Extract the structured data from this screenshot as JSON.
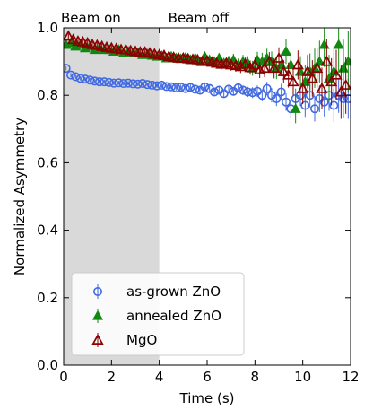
{
  "chart_data": {
    "type": "scatter",
    "title": "",
    "xlabel": "Time (s)",
    "ylabel": "Normalized Asymmetry",
    "xlim": [
      0,
      12
    ],
    "ylim": [
      0.0,
      1.0
    ],
    "xticks": [
      0,
      2,
      4,
      6,
      8,
      10,
      12
    ],
    "yticks": [
      0.0,
      0.2,
      0.4,
      0.6,
      0.8,
      1.0
    ],
    "xtick_labels": [
      "0",
      "2",
      "4",
      "6",
      "8",
      "10",
      "12"
    ],
    "ytick_labels": [
      "0.0",
      "0.2",
      "0.4",
      "0.6",
      "0.8",
      "1.0"
    ],
    "grid": false,
    "legend_position": "lower-left",
    "shaded_region": {
      "x": [
        0,
        4
      ],
      "color": "#d9d9d9"
    },
    "annotations": [
      {
        "text": "Beam on",
        "x": 0
      },
      {
        "text": "Beam off",
        "x": 4.3
      }
    ],
    "series": [
      {
        "name": "as-grown ZnO",
        "marker": "circle-open",
        "color": "#4169e1",
        "x": [
          0.1,
          0.3,
          0.5,
          0.7,
          0.9,
          1.1,
          1.3,
          1.5,
          1.7,
          1.9,
          2.1,
          2.3,
          2.5,
          2.7,
          2.9,
          3.1,
          3.3,
          3.5,
          3.7,
          3.9,
          4.1,
          4.3,
          4.5,
          4.7,
          4.9,
          5.1,
          5.3,
          5.5,
          5.7,
          5.9,
          6.1,
          6.3,
          6.5,
          6.7,
          6.9,
          7.1,
          7.3,
          7.5,
          7.7,
          7.9,
          8.1,
          8.3,
          8.5,
          8.7,
          8.9,
          9.1,
          9.3,
          9.5,
          9.7,
          9.9,
          10.1,
          10.3,
          10.5,
          10.7,
          10.9,
          11.1,
          11.3,
          11.5,
          11.7,
          11.9
        ],
        "y": [
          0.88,
          0.86,
          0.855,
          0.85,
          0.848,
          0.845,
          0.842,
          0.84,
          0.84,
          0.838,
          0.836,
          0.837,
          0.835,
          0.836,
          0.834,
          0.833,
          0.835,
          0.832,
          0.83,
          0.828,
          0.83,
          0.826,
          0.825,
          0.822,
          0.824,
          0.82,
          0.823,
          0.818,
          0.815,
          0.825,
          0.82,
          0.81,
          0.815,
          0.805,
          0.818,
          0.812,
          0.822,
          0.815,
          0.81,
          0.808,
          0.812,
          0.8,
          0.82,
          0.8,
          0.79,
          0.81,
          0.78,
          0.76,
          0.79,
          0.8,
          0.77,
          0.8,
          0.76,
          0.79,
          0.78,
          0.8,
          0.77,
          0.8,
          0.79,
          0.79
        ],
        "yerr": [
          0.006,
          0.006,
          0.006,
          0.006,
          0.006,
          0.006,
          0.006,
          0.006,
          0.006,
          0.006,
          0.006,
          0.006,
          0.006,
          0.006,
          0.006,
          0.006,
          0.006,
          0.006,
          0.006,
          0.006,
          0.008,
          0.008,
          0.008,
          0.008,
          0.008,
          0.008,
          0.009,
          0.009,
          0.009,
          0.01,
          0.01,
          0.01,
          0.011,
          0.011,
          0.012,
          0.012,
          0.013,
          0.014,
          0.015,
          0.016,
          0.017,
          0.018,
          0.02,
          0.021,
          0.022,
          0.024,
          0.026,
          0.028,
          0.03,
          0.032,
          0.034,
          0.036,
          0.038,
          0.04,
          0.043,
          0.046,
          0.049,
          0.052,
          0.056,
          0.06
        ]
      },
      {
        "name": "annealed ZnO",
        "marker": "triangle-filled",
        "color": "#118811",
        "x": [
          0.1,
          0.3,
          0.5,
          0.7,
          0.9,
          1.1,
          1.3,
          1.5,
          1.7,
          1.9,
          2.1,
          2.3,
          2.5,
          2.7,
          2.9,
          3.1,
          3.3,
          3.5,
          3.7,
          3.9,
          4.1,
          4.3,
          4.5,
          4.7,
          4.9,
          5.1,
          5.3,
          5.5,
          5.7,
          5.9,
          6.1,
          6.3,
          6.5,
          6.7,
          6.9,
          7.1,
          7.3,
          7.5,
          7.7,
          7.9,
          8.1,
          8.3,
          8.5,
          8.7,
          8.9,
          9.1,
          9.3,
          9.5,
          9.7,
          9.9,
          10.1,
          10.3,
          10.5,
          10.7,
          10.9,
          11.1,
          11.3,
          11.5,
          11.7,
          11.9
        ],
        "y": [
          0.95,
          0.955,
          0.945,
          0.95,
          0.94,
          0.945,
          0.935,
          0.94,
          0.935,
          0.935,
          0.93,
          0.935,
          0.925,
          0.93,
          0.925,
          0.925,
          0.92,
          0.922,
          0.918,
          0.915,
          0.917,
          0.91,
          0.915,
          0.91,
          0.908,
          0.912,
          0.905,
          0.91,
          0.9,
          0.915,
          0.905,
          0.9,
          0.91,
          0.895,
          0.9,
          0.905,
          0.89,
          0.9,
          0.895,
          0.88,
          0.905,
          0.9,
          0.91,
          0.9,
          0.88,
          0.89,
          0.93,
          0.89,
          0.76,
          0.87,
          0.84,
          0.87,
          0.88,
          0.9,
          0.95,
          0.85,
          0.87,
          0.95,
          0.88,
          0.9
        ],
        "yerr": [
          0.008,
          0.008,
          0.008,
          0.008,
          0.008,
          0.008,
          0.008,
          0.008,
          0.008,
          0.008,
          0.008,
          0.008,
          0.008,
          0.008,
          0.008,
          0.008,
          0.008,
          0.008,
          0.008,
          0.008,
          0.009,
          0.009,
          0.01,
          0.01,
          0.01,
          0.011,
          0.011,
          0.012,
          0.012,
          0.013,
          0.013,
          0.014,
          0.015,
          0.016,
          0.017,
          0.018,
          0.019,
          0.02,
          0.021,
          0.022,
          0.024,
          0.026,
          0.028,
          0.03,
          0.032,
          0.034,
          0.037,
          0.04,
          0.043,
          0.046,
          0.05,
          0.054,
          0.058,
          0.062,
          0.066,
          0.07,
          0.075,
          0.08,
          0.085,
          0.09
        ]
      },
      {
        "name": "MgO",
        "marker": "triangle-open",
        "color": "#8b0000",
        "x": [
          0.2,
          0.4,
          0.6,
          0.8,
          1.0,
          1.2,
          1.4,
          1.6,
          1.8,
          2.0,
          2.2,
          2.4,
          2.6,
          2.8,
          3.0,
          3.2,
          3.4,
          3.6,
          3.8,
          4.0,
          4.2,
          4.4,
          4.6,
          4.8,
          5.0,
          5.2,
          5.4,
          5.6,
          5.8,
          6.0,
          6.2,
          6.4,
          6.6,
          6.8,
          7.0,
          7.2,
          7.4,
          7.6,
          7.8,
          8.0,
          8.2,
          8.4,
          8.6,
          8.8,
          9.0,
          9.2,
          9.4,
          9.6,
          9.8,
          10.0,
          10.2,
          10.4,
          10.6,
          10.8,
          11.0,
          11.2,
          11.4,
          11.6,
          11.8
        ],
        "y": [
          0.975,
          0.965,
          0.96,
          0.958,
          0.955,
          0.95,
          0.948,
          0.945,
          0.942,
          0.94,
          0.938,
          0.935,
          0.935,
          0.932,
          0.93,
          0.928,
          0.928,
          0.925,
          0.922,
          0.92,
          0.918,
          0.915,
          0.912,
          0.91,
          0.91,
          0.908,
          0.906,
          0.905,
          0.9,
          0.902,
          0.898,
          0.895,
          0.892,
          0.895,
          0.89,
          0.888,
          0.885,
          0.892,
          0.882,
          0.89,
          0.875,
          0.88,
          0.9,
          0.88,
          0.91,
          0.87,
          0.86,
          0.84,
          0.89,
          0.82,
          0.87,
          0.85,
          0.88,
          0.82,
          0.9,
          0.84,
          0.86,
          0.81,
          0.83
        ],
        "yerr": [
          0.008,
          0.008,
          0.008,
          0.008,
          0.008,
          0.008,
          0.008,
          0.008,
          0.008,
          0.008,
          0.008,
          0.008,
          0.008,
          0.008,
          0.008,
          0.008,
          0.008,
          0.008,
          0.008,
          0.008,
          0.009,
          0.009,
          0.01,
          0.01,
          0.01,
          0.011,
          0.011,
          0.012,
          0.012,
          0.013,
          0.013,
          0.014,
          0.015,
          0.016,
          0.017,
          0.018,
          0.019,
          0.02,
          0.021,
          0.022,
          0.024,
          0.026,
          0.028,
          0.03,
          0.032,
          0.034,
          0.037,
          0.04,
          0.043,
          0.046,
          0.05,
          0.054,
          0.058,
          0.062,
          0.066,
          0.07,
          0.075,
          0.08,
          0.085
        ]
      }
    ]
  }
}
